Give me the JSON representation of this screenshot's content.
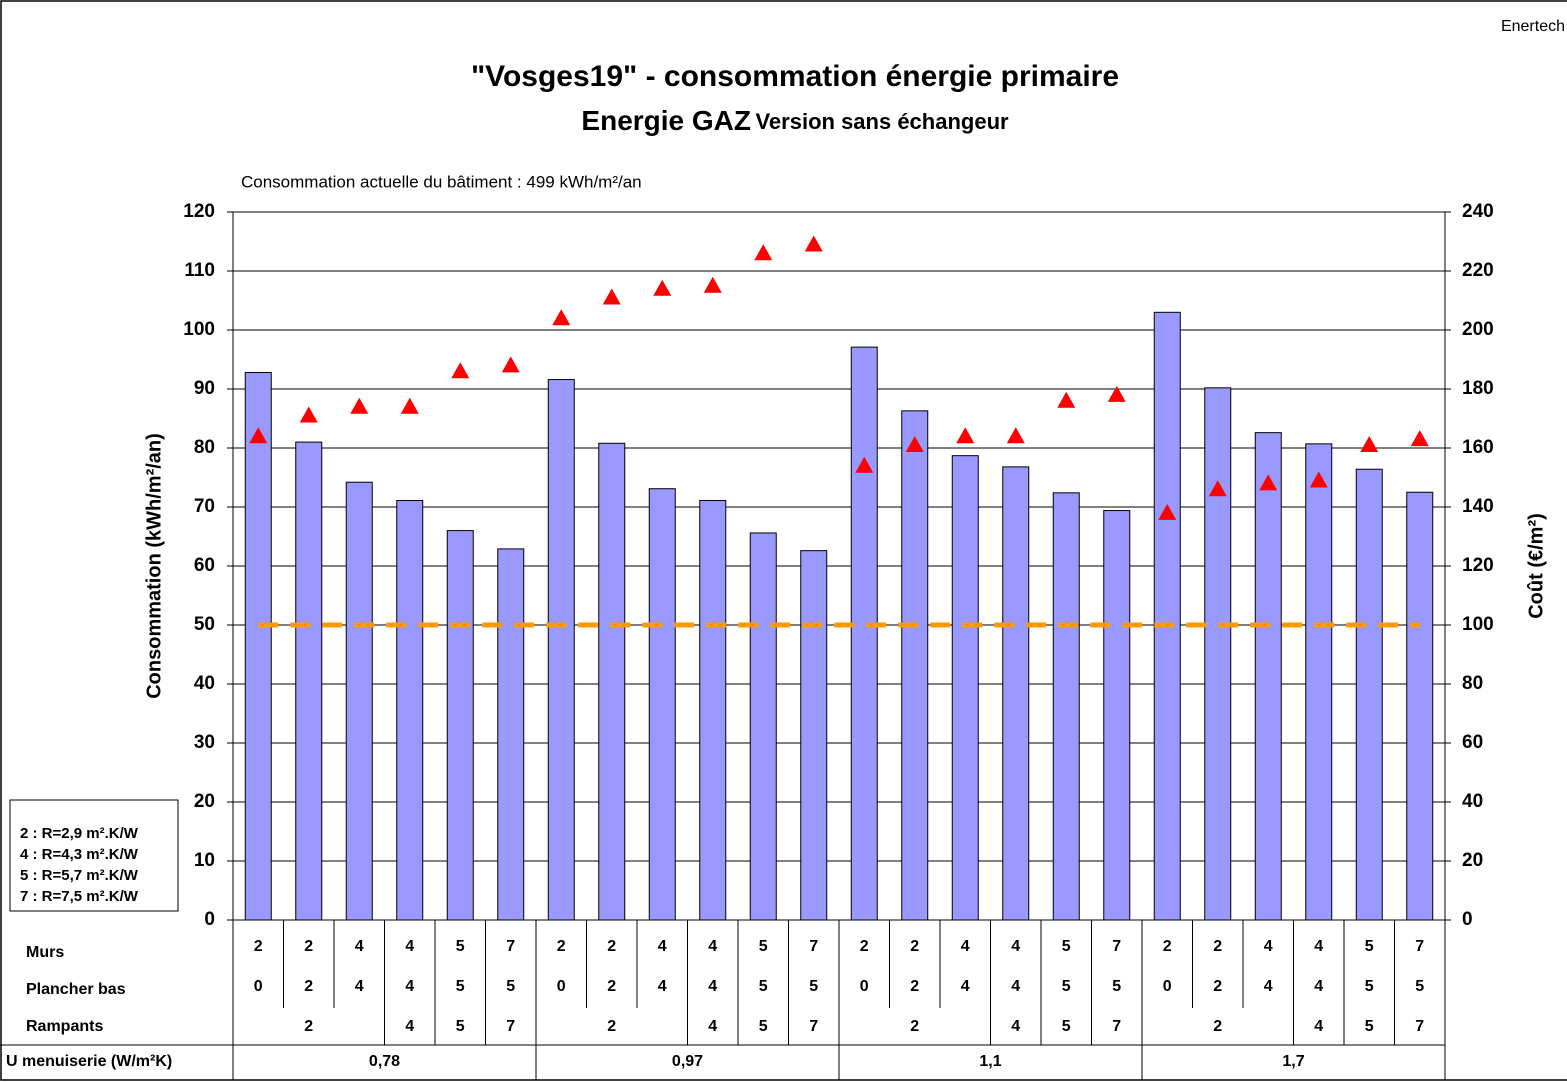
{
  "chart_data": {
    "type": "bar",
    "source": "Enertech",
    "title": "\"Vosges19\" - consommation énergie primaire",
    "title_line2_main": "Energie GAZ",
    "title_line2_sub": "Version sans échangeur",
    "subtitle": "Consommation actuelle du bâtiment : 499 kWh/m²/an",
    "ylabel": "Consommation (kWh/m²/an)",
    "y2label": "Coût (€/m²)",
    "ylim": [
      0,
      120
    ],
    "yticks": [
      0,
      10,
      20,
      30,
      40,
      50,
      60,
      70,
      80,
      90,
      100,
      110,
      120
    ],
    "y2lim": [
      0,
      240
    ],
    "y2ticks": [
      0,
      20,
      40,
      60,
      80,
      100,
      120,
      140,
      160,
      180,
      200,
      220,
      240
    ],
    "grid": true,
    "series": [
      {
        "type": "bar",
        "color": "#9999ff",
        "values": [
          92.8,
          81,
          74.2,
          71.1,
          66,
          62.9,
          91.6,
          80.8,
          73.1,
          71.1,
          65.6,
          62.6,
          97.1,
          86.3,
          78.7,
          76.8,
          72.4,
          69.4,
          103,
          90.2,
          82.6,
          80.7,
          76.4,
          72.5
        ]
      },
      {
        "type": "scatter",
        "marker": "triangle",
        "color": "#ff0000",
        "axis": "y2",
        "values": [
          164,
          171,
          174,
          174,
          186,
          188,
          204,
          211,
          214,
          215,
          226,
          229,
          154,
          161,
          164,
          164,
          176,
          178,
          138,
          146,
          148,
          149,
          161,
          163
        ]
      },
      {
        "type": "line",
        "dashed": true,
        "color": "#ff9900",
        "values": [
          50,
          50,
          50,
          50,
          50,
          50,
          50,
          50,
          50,
          50,
          50,
          50,
          50,
          50,
          50,
          50,
          50,
          50,
          50,
          50,
          50,
          50,
          50,
          50
        ]
      }
    ],
    "category_rows": [
      {
        "label": "Murs",
        "cells": [
          {
            "label": "2",
            "span": 1
          },
          {
            "label": "2",
            "span": 1
          },
          {
            "label": "4",
            "span": 1
          },
          {
            "label": "4",
            "span": 1
          },
          {
            "label": "5",
            "span": 1
          },
          {
            "label": "7",
            "span": 1
          },
          {
            "label": "2",
            "span": 1
          },
          {
            "label": "2",
            "span": 1
          },
          {
            "label": "4",
            "span": 1
          },
          {
            "label": "4",
            "span": 1
          },
          {
            "label": "5",
            "span": 1
          },
          {
            "label": "7",
            "span": 1
          },
          {
            "label": "2",
            "span": 1
          },
          {
            "label": "2",
            "span": 1
          },
          {
            "label": "4",
            "span": 1
          },
          {
            "label": "4",
            "span": 1
          },
          {
            "label": "5",
            "span": 1
          },
          {
            "label": "7",
            "span": 1
          },
          {
            "label": "2",
            "span": 1
          },
          {
            "label": "2",
            "span": 1
          },
          {
            "label": "4",
            "span": 1
          },
          {
            "label": "4",
            "span": 1
          },
          {
            "label": "5",
            "span": 1
          },
          {
            "label": "7",
            "span": 1
          }
        ]
      },
      {
        "label": "Plancher bas",
        "cells": [
          {
            "label": "0",
            "span": 1
          },
          {
            "label": "2",
            "span": 1
          },
          {
            "label": "4",
            "span": 1
          },
          {
            "label": "4",
            "span": 1
          },
          {
            "label": "5",
            "span": 1
          },
          {
            "label": "5",
            "span": 1
          },
          {
            "label": "0",
            "span": 1
          },
          {
            "label": "2",
            "span": 1
          },
          {
            "label": "4",
            "span": 1
          },
          {
            "label": "4",
            "span": 1
          },
          {
            "label": "5",
            "span": 1
          },
          {
            "label": "5",
            "span": 1
          },
          {
            "label": "0",
            "span": 1
          },
          {
            "label": "2",
            "span": 1
          },
          {
            "label": "4",
            "span": 1
          },
          {
            "label": "4",
            "span": 1
          },
          {
            "label": "5",
            "span": 1
          },
          {
            "label": "5",
            "span": 1
          },
          {
            "label": "0",
            "span": 1
          },
          {
            "label": "2",
            "span": 1
          },
          {
            "label": "4",
            "span": 1
          },
          {
            "label": "4",
            "span": 1
          },
          {
            "label": "5",
            "span": 1
          },
          {
            "label": "5",
            "span": 1
          }
        ]
      },
      {
        "label": "Rampants",
        "cells": [
          {
            "label": "2",
            "span": 3
          },
          {
            "label": "4",
            "span": 1
          },
          {
            "label": "5",
            "span": 1
          },
          {
            "label": "7",
            "span": 1
          },
          {
            "label": "2",
            "span": 3
          },
          {
            "label": "4",
            "span": 1
          },
          {
            "label": "5",
            "span": 1
          },
          {
            "label": "7",
            "span": 1
          },
          {
            "label": "2",
            "span": 3
          },
          {
            "label": "4",
            "span": 1
          },
          {
            "label": "5",
            "span": 1
          },
          {
            "label": "7",
            "span": 1
          },
          {
            "label": "2",
            "span": 3
          },
          {
            "label": "4",
            "span": 1
          },
          {
            "label": "5",
            "span": 1
          },
          {
            "label": "7",
            "span": 1
          }
        ]
      },
      {
        "label": "U menuiserie (W/m²K)",
        "cells": [
          {
            "label": "0,78",
            "span": 6
          },
          {
            "label": "0,97",
            "span": 6
          },
          {
            "label": "1,1",
            "span": 6
          },
          {
            "label": "1,7",
            "span": 6
          }
        ]
      }
    ],
    "notes": [
      "2 : R=2,9 m².K/W",
      "4 : R=4,3 m².K/W",
      "5 : R=5,7 m².K/W",
      "7 : R=7,5 m².K/W"
    ]
  }
}
